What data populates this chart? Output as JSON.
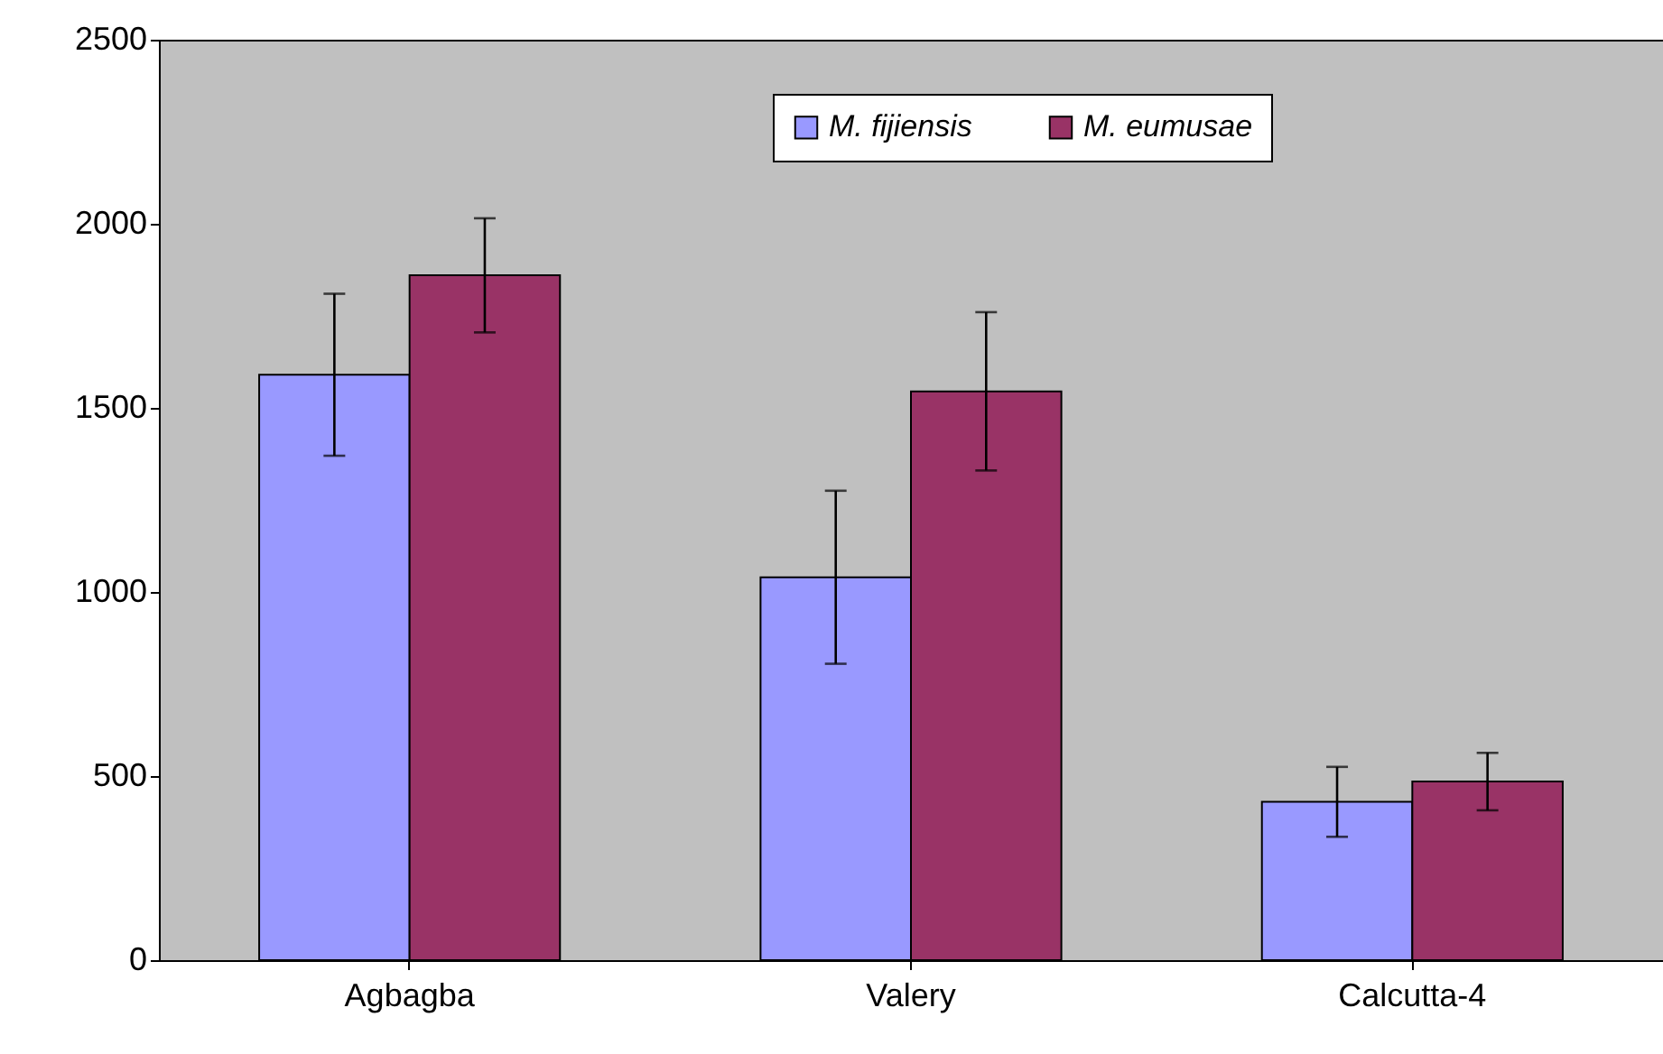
{
  "chart_data": {
    "type": "bar",
    "categories": [
      "Agbagba",
      "Valery",
      "Calcutta-4"
    ],
    "series": [
      {
        "name": "M. fijiensis",
        "color": "#9999ff",
        "values": [
          1590,
          1040,
          430
        ],
        "errors": [
          220,
          235,
          95
        ]
      },
      {
        "name": "M. eumusae",
        "color": "#993366",
        "values": [
          1860,
          1545,
          485
        ],
        "errors": [
          155,
          215,
          78
        ]
      }
    ],
    "ylim": [
      0,
      2500
    ],
    "yticks": [
      0,
      500,
      1000,
      1500,
      2000,
      2500
    ],
    "grid": false,
    "legend": "top"
  }
}
